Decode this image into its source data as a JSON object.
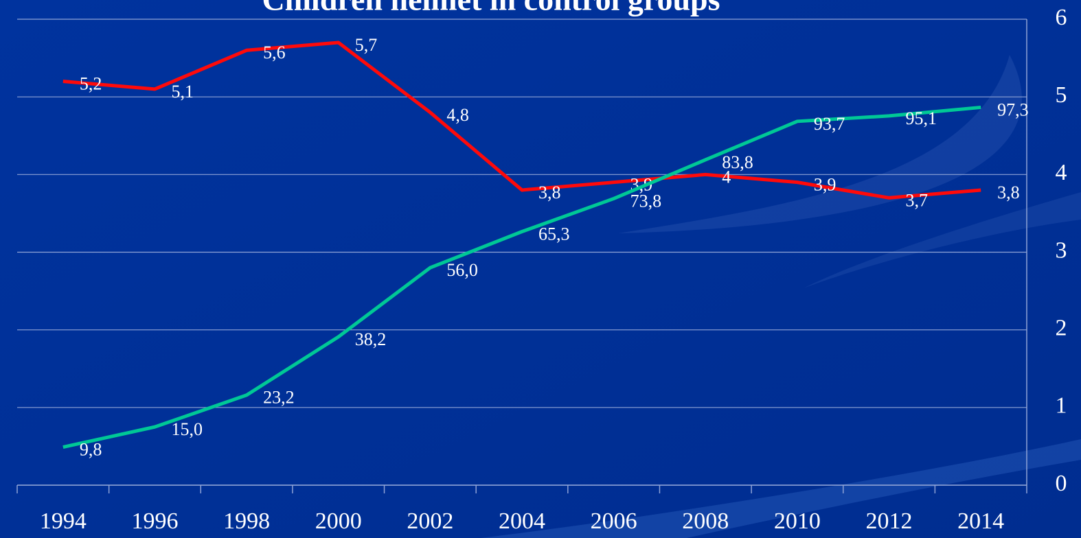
{
  "chart_data": {
    "type": "line",
    "title": "Children helmet in control groups",
    "categories": [
      "1994",
      "1996",
      "1998",
      "2000",
      "2002",
      "2004",
      "2006",
      "2008",
      "2010",
      "2012",
      "2014"
    ],
    "series": [
      {
        "color": "#ff0a0a",
        "values": [
          5.2,
          5.1,
          5.6,
          5.7,
          4.8,
          3.8,
          3.9,
          4,
          3.9,
          3.7,
          3.8
        ],
        "value_labels": [
          "5,2",
          "5,1",
          "5,6",
          "5,7",
          "4,8",
          "3,8",
          "3,9",
          "4",
          "3,9",
          "3,7",
          "3,8"
        ]
      },
      {
        "color": "#00c896",
        "axis": "y2",
        "values": [
          9.8,
          15.0,
          23.2,
          38.2,
          56.0,
          65.3,
          73.8,
          83.8,
          93.7,
          95.1,
          97.3
        ],
        "value_labels": [
          "9,8",
          "15,0",
          "23,2",
          "38,2",
          "56,0",
          "65,3",
          "73,8",
          "83,8",
          "93,7",
          "95,1",
          "97,3"
        ]
      }
    ],
    "ylim": [
      0,
      6
    ],
    "yticks": [
      0,
      1,
      2,
      3,
      4,
      5,
      6
    ],
    "y2lim": [
      0,
      120
    ],
    "grid": true
  }
}
